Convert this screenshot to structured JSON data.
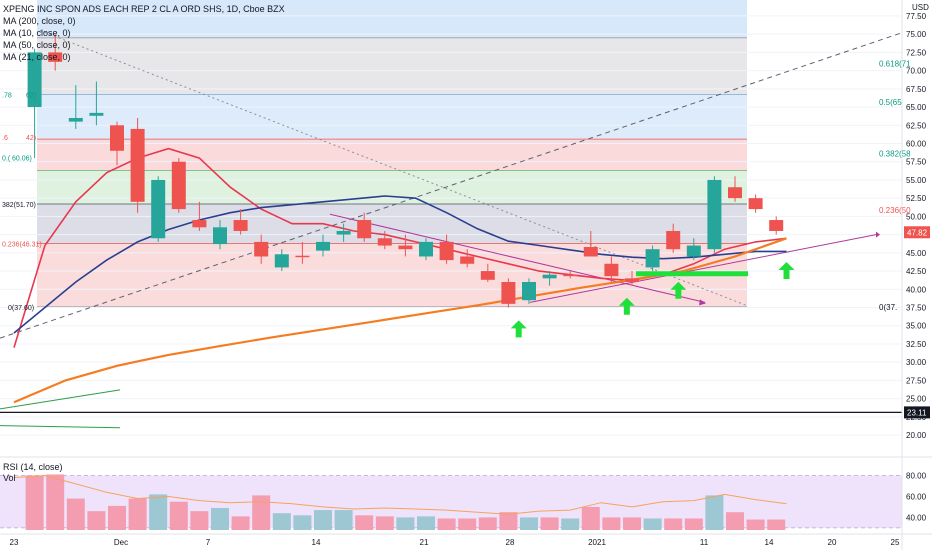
{
  "chart_data": {
    "type": "candlestick",
    "title": "XPENG INC SPON ADS EACH REP 2 CL A ORD SHS, 1D, Cboe BZX",
    "currency": "USD",
    "indicators": [
      "MA (200, close, 0)",
      "MA (10, close, 0)",
      "MA (50, close, 0)",
      "MA (21, close, 0)"
    ],
    "y_ticks": [
      "77.50",
      "75.00",
      "72.50",
      "70.00",
      "67.50",
      "65.00",
      "62.50",
      "60.00",
      "57.50",
      "55.00",
      "52.50",
      "50.00",
      "47.50",
      "45.00",
      "42.50",
      "40.00",
      "37.50",
      "35.00",
      "32.50",
      "30.00",
      "27.50",
      "25.00",
      "22.50",
      "20.00"
    ],
    "ylim": [
      18.5,
      79
    ],
    "x_ticks": [
      "23",
      "Dec",
      "7",
      "14",
      "21",
      "28",
      "2021",
      "11",
      "14",
      "20",
      "25"
    ],
    "price_badge": {
      "value": "47.82",
      "price": 47.82,
      "color": "#ef5350"
    },
    "level_badge": {
      "value": "23.11",
      "price": 23.11,
      "color": "#131722"
    },
    "fib_labels": [
      {
        "text": "0.618(71",
        "price": 71.0,
        "color": "#089981"
      },
      {
        "text": "0.5(65",
        "price": 65.7,
        "color": "#089981"
      },
      {
        "text": "0.382(58",
        "price": 58.6,
        "color": "#089981"
      },
      {
        "text": "0.236(50",
        "price": 50.9,
        "color": "#ef5350"
      },
      {
        "text": "0(37.",
        "price": 37.6,
        "color": "#131722"
      }
    ],
    "fib_left_labels": [
      {
        "text": ".78",
        "price": 66.7,
        "color": "#089981"
      },
      {
        "text": "62)",
        "price": 66.7,
        "color": "#089981"
      },
      {
        "text": ".6",
        "price": 60.9,
        "color": "#ef5350"
      },
      {
        "text": "42)",
        "price": 60.9,
        "color": "#ef5350"
      },
      {
        "text": "0.(",
        "price": 58.1,
        "color": "#089981"
      },
      {
        "text": "60.06)",
        "price": 58.1,
        "color": "#089981"
      },
      {
        "text": "382(51.70)",
        "price": 51.7,
        "color": "#131722"
      },
      {
        "text": "0.236(46.31)",
        "price": 46.3,
        "color": "#ef5350"
      },
      {
        "text": "0(37.60)",
        "price": 37.6,
        "color": "#131722"
      }
    ],
    "candles": [
      {
        "d": 2,
        "o": 65.0,
        "h": 73.0,
        "l": 58.0,
        "c": 72.5
      },
      {
        "d": 4,
        "o": 72.5,
        "h": 75.0,
        "l": 70.0,
        "c": 71.2
      },
      {
        "d": 6,
        "o": 63.0,
        "h": 68.0,
        "l": 62.0,
        "c": 63.5
      },
      {
        "d": 8,
        "o": 63.8,
        "h": 68.5,
        "l": 62.5,
        "c": 64.2
      },
      {
        "d": 10,
        "o": 62.5,
        "h": 63.0,
        "l": 57.0,
        "c": 59.0
      },
      {
        "d": 12,
        "o": 62.0,
        "h": 63.5,
        "l": 50.5,
        "c": 52.0
      },
      {
        "d": 14,
        "o": 47.0,
        "h": 55.5,
        "l": 46.5,
        "c": 55.0
      },
      {
        "d": 16,
        "o": 57.5,
        "h": 58.0,
        "l": 50.5,
        "c": 51.0
      },
      {
        "d": 18,
        "o": 49.5,
        "h": 52.0,
        "l": 48.0,
        "c": 48.5
      },
      {
        "d": 20,
        "o": 46.2,
        "h": 49.5,
        "l": 45.5,
        "c": 48.5
      },
      {
        "d": 22,
        "o": 49.5,
        "h": 51.0,
        "l": 47.5,
        "c": 48.0
      },
      {
        "d": 24,
        "o": 46.5,
        "h": 47.5,
        "l": 43.5,
        "c": 44.5
      },
      {
        "d": 26,
        "o": 43.0,
        "h": 45.5,
        "l": 42.5,
        "c": 44.8
      },
      {
        "d": 28,
        "o": 44.6,
        "h": 46.5,
        "l": 43.5,
        "c": 44.4
      },
      {
        "d": 30,
        "o": 45.3,
        "h": 47.5,
        "l": 44.5,
        "c": 46.5
      },
      {
        "d": 32,
        "o": 47.5,
        "h": 49.0,
        "l": 46.5,
        "c": 48.0
      },
      {
        "d": 34,
        "o": 49.5,
        "h": 50.5,
        "l": 46.5,
        "c": 47.0
      },
      {
        "d": 36,
        "o": 47.0,
        "h": 48.0,
        "l": 45.5,
        "c": 46.0
      },
      {
        "d": 38,
        "o": 46.0,
        "h": 47.5,
        "l": 44.5,
        "c": 45.5
      },
      {
        "d": 40,
        "o": 44.5,
        "h": 47.0,
        "l": 44.0,
        "c": 46.5
      },
      {
        "d": 42,
        "o": 46.5,
        "h": 47.5,
        "l": 43.5,
        "c": 44.0
      },
      {
        "d": 44,
        "o": 44.5,
        "h": 45.5,
        "l": 43.0,
        "c": 43.5
      },
      {
        "d": 46,
        "o": 42.5,
        "h": 43.5,
        "l": 41.0,
        "c": 41.3
      },
      {
        "d": 48,
        "o": 41.0,
        "h": 41.5,
        "l": 37.5,
        "c": 38.0
      },
      {
        "d": 50,
        "o": 38.5,
        "h": 41.5,
        "l": 38.0,
        "c": 41.0
      },
      {
        "d": 52,
        "o": 41.5,
        "h": 42.5,
        "l": 40.5,
        "c": 42.0
      },
      {
        "d": 54,
        "o": 42.0,
        "h": 42.5,
        "l": 41.5,
        "c": 41.8
      },
      {
        "d": 56,
        "o": 45.8,
        "h": 48.0,
        "l": 44.5,
        "c": 44.5
      },
      {
        "d": 58,
        "o": 43.5,
        "h": 44.5,
        "l": 41.0,
        "c": 41.8
      },
      {
        "d": 60,
        "o": 41.5,
        "h": 42.5,
        "l": 40.5,
        "c": 41.0
      },
      {
        "d": 62,
        "o": 43.0,
        "h": 46.0,
        "l": 42.5,
        "c": 45.5
      },
      {
        "d": 64,
        "o": 48.0,
        "h": 49.0,
        "l": 45.0,
        "c": 45.5
      },
      {
        "d": 66,
        "o": 44.5,
        "h": 47.0,
        "l": 44.0,
        "c": 46.0
      },
      {
        "d": 68,
        "o": 45.5,
        "h": 55.5,
        "l": 45.0,
        "c": 55.0
      },
      {
        "d": 70,
        "o": 54.0,
        "h": 55.5,
        "l": 52.0,
        "c": 52.5
      },
      {
        "d": 72,
        "o": 52.5,
        "h": 53.0,
        "l": 50.5,
        "c": 51.0
      },
      {
        "d": 74,
        "o": 49.5,
        "h": 50.0,
        "l": 47.5,
        "c": 48.0
      }
    ],
    "series": [
      {
        "name": "MA (10, close, 0)",
        "color": "#e8384f",
        "x": [
          0,
          3,
          6,
          9,
          12,
          15,
          18,
          21,
          24,
          27,
          30,
          33,
          36,
          39,
          42,
          45,
          48,
          51,
          54,
          57,
          60,
          63,
          66,
          69,
          72,
          75
        ],
        "y": [
          32,
          46,
          52,
          56,
          58,
          59.3,
          58,
          54,
          51,
          49,
          49,
          48,
          47.5,
          46.5,
          45.5,
          44.5,
          43.5,
          42.5,
          42,
          41.5,
          41.2,
          42,
          43.5,
          45.5,
          46.5,
          47
        ]
      },
      {
        "name": "MA (21, close, 0)",
        "color": "#2a3f8f",
        "x": [
          0,
          3,
          6,
          9,
          12,
          15,
          18,
          21,
          24,
          27,
          30,
          33,
          36,
          39,
          42,
          45,
          48,
          51,
          54,
          57,
          60,
          63,
          66,
          69,
          72,
          75
        ],
        "y": [
          34,
          37.5,
          41,
          44,
          46.5,
          48.2,
          49.5,
          50.5,
          51.2,
          51.6,
          52.0,
          52.4,
          52.8,
          52.5,
          50.5,
          48.3,
          46.6,
          46.0,
          45.4,
          44.8,
          44.4,
          44.2,
          44.4,
          44.8,
          45.2,
          45.2
        ]
      },
      {
        "name": "MA (200, close, 0)",
        "color": "#f57c21",
        "x": [
          0,
          5,
          10,
          15,
          20,
          25,
          30,
          35,
          40,
          45,
          50,
          55,
          60,
          65,
          70,
          75
        ],
        "y": [
          24.5,
          27.5,
          29.5,
          31.0,
          32.2,
          33.4,
          34.5,
          35.6,
          36.7,
          37.8,
          39.0,
          40.2,
          41.3,
          42.5,
          44.5,
          47.0
        ]
      }
    ],
    "rsi": {
      "label": "RSI (14, close)",
      "sublabel": "Vol",
      "y_ticks": [
        "80.00",
        "60.00",
        "40.00"
      ],
      "ylim": [
        28,
        90
      ],
      "band": [
        30,
        80
      ],
      "line_color": "#f5a35c",
      "line": [
        [
          0,
          78
        ],
        [
          3,
          80
        ],
        [
          6,
          72
        ],
        [
          9,
          64
        ],
        [
          12,
          58
        ],
        [
          15,
          60
        ],
        [
          18,
          56
        ],
        [
          21,
          54
        ],
        [
          24,
          55
        ],
        [
          27,
          53
        ],
        [
          30,
          50
        ],
        [
          33,
          48
        ],
        [
          36,
          49
        ],
        [
          39,
          48
        ],
        [
          42,
          47
        ],
        [
          45,
          45
        ],
        [
          48,
          43
        ],
        [
          51,
          46
        ],
        [
          54,
          47
        ],
        [
          57,
          54
        ],
        [
          60,
          50
        ],
        [
          63,
          55
        ],
        [
          66,
          56
        ],
        [
          69,
          62
        ],
        [
          72,
          57
        ],
        [
          75,
          53
        ]
      ],
      "volume": [
        {
          "d": 2,
          "v": 80,
          "up": false
        },
        {
          "d": 4,
          "v": 81,
          "up": false
        },
        {
          "d": 6,
          "v": 58,
          "up": false
        },
        {
          "d": 8,
          "v": 46,
          "up": false
        },
        {
          "d": 10,
          "v": 51,
          "up": false
        },
        {
          "d": 12,
          "v": 58,
          "up": false
        },
        {
          "d": 14,
          "v": 62,
          "up": true
        },
        {
          "d": 16,
          "v": 55,
          "up": false
        },
        {
          "d": 18,
          "v": 46,
          "up": false
        },
        {
          "d": 20,
          "v": 49,
          "up": true
        },
        {
          "d": 22,
          "v": 41,
          "up": false
        },
        {
          "d": 24,
          "v": 61,
          "up": false
        },
        {
          "d": 26,
          "v": 44,
          "up": true
        },
        {
          "d": 28,
          "v": 42,
          "up": true
        },
        {
          "d": 30,
          "v": 47,
          "up": true
        },
        {
          "d": 32,
          "v": 47,
          "up": true
        },
        {
          "d": 34,
          "v": 42,
          "up": false
        },
        {
          "d": 36,
          "v": 41,
          "up": false
        },
        {
          "d": 38,
          "v": 40,
          "up": true
        },
        {
          "d": 40,
          "v": 41,
          "up": true
        },
        {
          "d": 42,
          "v": 39,
          "up": false
        },
        {
          "d": 44,
          "v": 39,
          "up": false
        },
        {
          "d": 46,
          "v": 40,
          "up": false
        },
        {
          "d": 48,
          "v": 45,
          "up": false
        },
        {
          "d": 50,
          "v": 40,
          "up": true
        },
        {
          "d": 52,
          "v": 40,
          "up": false
        },
        {
          "d": 54,
          "v": 39,
          "up": true
        },
        {
          "d": 56,
          "v": 50,
          "up": false
        },
        {
          "d": 58,
          "v": 40,
          "up": false
        },
        {
          "d": 60,
          "v": 40,
          "up": false
        },
        {
          "d": 62,
          "v": 39,
          "up": true
        },
        {
          "d": 64,
          "v": 39,
          "up": false
        },
        {
          "d": 66,
          "v": 39,
          "up": false
        },
        {
          "d": 68,
          "v": 61,
          "up": true
        },
        {
          "d": 70,
          "v": 45,
          "up": false
        },
        {
          "d": 72,
          "v": 38,
          "up": false
        },
        {
          "d": 74,
          "v": 38,
          "up": false
        }
      ]
    },
    "colors": {
      "up": "#26a69a",
      "down": "#ef5350",
      "up_vol": "#9cc7d3",
      "down_vol": "#f49db0",
      "axis_text": "#131722",
      "green_marker": "#1fe03a"
    },
    "annotations": {
      "up_arrows": [
        {
          "d": 49,
          "price": 34.5
        },
        {
          "d": 59.5,
          "price": 37.6
        },
        {
          "d": 64.5,
          "price": 39.8
        },
        {
          "d": 75,
          "price": 42.5
        }
      ],
      "horizontal_line_price": 23.11
    }
  }
}
